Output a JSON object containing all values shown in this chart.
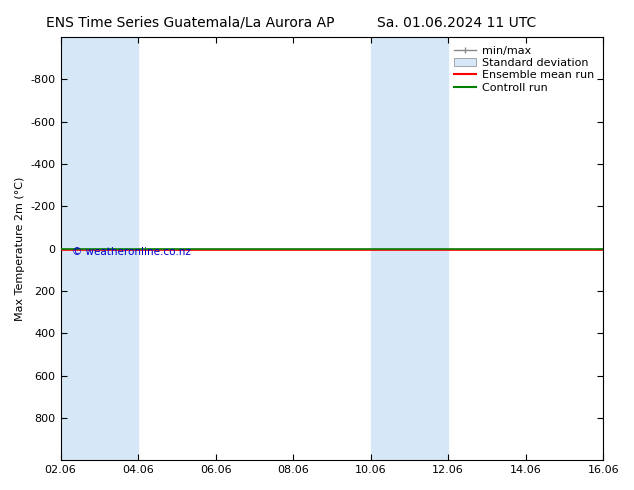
{
  "title_left": "ENS Time Series Guatemala/La Aurora AP",
  "title_right": "Sa. 01.06.2024 11 UTC",
  "ylabel": "Max Temperature 2m (°C)",
  "ylim_bottom": 1000,
  "ylim_top": -1000,
  "yticks": [
    -800,
    -600,
    -400,
    -200,
    0,
    200,
    400,
    600,
    800
  ],
  "ytick_top_extra": -1000,
  "xlim": [
    0,
    14
  ],
  "xtick_positions": [
    0,
    2,
    4,
    6,
    8,
    10,
    12,
    14
  ],
  "xtick_labels": [
    "02.06",
    "04.06",
    "06.06",
    "08.06",
    "10.06",
    "12.06",
    "14.06",
    "16.06"
  ],
  "band_starts": [
    0,
    1.5,
    8,
    9.5,
    14
  ],
  "band_ends": [
    1.5,
    2,
    9.5,
    10,
    16
  ],
  "band_color": "#d6e8f7",
  "green_line_color": "#008000",
  "red_line_color": "#ff0000",
  "line_y": 0,
  "legend_labels": [
    "min/max",
    "Standard deviation",
    "Ensemble mean run",
    "Controll run"
  ],
  "copyright_text": "© weatheronline.co.nz",
  "copyright_color": "#0000cc",
  "background_color": "#ffffff",
  "plot_bg_color": "#ffffff",
  "title_fontsize": 10,
  "axis_fontsize": 8,
  "legend_fontsize": 8
}
